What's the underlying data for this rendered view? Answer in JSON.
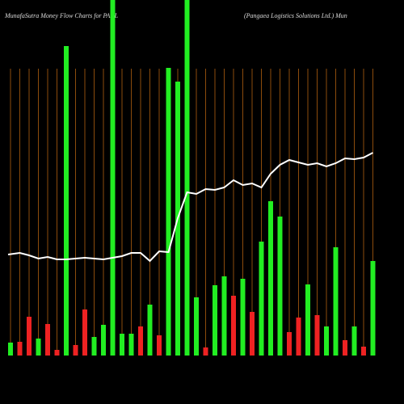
{
  "chart_data": {
    "type": "bar",
    "title": "MunafaSutra  Money Flow  Charts for PANL",
    "subtitle": "(Pangaea  Logistics Solutions Ltd.) Mun",
    "categories": [
      null,
      null,
      null,
      null,
      null,
      null,
      null,
      null,
      null,
      null,
      null,
      null,
      null,
      null,
      null,
      null,
      null,
      null,
      null,
      null,
      null,
      null,
      null,
      null,
      null,
      null,
      null,
      null,
      null,
      null,
      null,
      null,
      null,
      null,
      null,
      null,
      null,
      null,
      null,
      null
    ],
    "ylim": [
      0,
      440
    ],
    "grid": true,
    "grid_color": "#b0600f",
    "background": "#000000",
    "series": [
      {
        "type": "bar",
        "colors": [
          "#22ee22",
          "#ee2222",
          "#ee2222",
          "#22ee22",
          "#ee2222",
          "#ee2222",
          "#22ee22",
          "#ee2222",
          "#ee2222",
          "#22ee22",
          "#22ee22",
          "#22ee22",
          "#22ee22",
          "#22ee22",
          "#ee2222",
          "#22ee22",
          "#ee2222",
          "#22ee22",
          "#22ee22",
          "#22ee22",
          "#22ee22",
          "#ee2222",
          "#22ee22",
          "#22ee22",
          "#ee2222",
          "#22ee22",
          "#ee2222",
          "#22ee22",
          "#22ee22",
          "#22ee22",
          "#ee2222",
          "#ee2222",
          "#22ee22",
          "#ee2222",
          "#22ee22",
          "#22ee22",
          "#ee2222",
          "#22ee22",
          "#ee2222",
          "#22ee22"
        ],
        "values": [
          16,
          17,
          48,
          21,
          39,
          7,
          383,
          13,
          57,
          23,
          38,
          450,
          27,
          27,
          36,
          63,
          25,
          356,
          339,
          450,
          72,
          10,
          87,
          98,
          74,
          95,
          54,
          141,
          191,
          172,
          29,
          47,
          88,
          50,
          36,
          134,
          19,
          36,
          11,
          117
        ]
      },
      {
        "type": "line",
        "color": "#ffffff",
        "values": [
          125,
          127,
          124,
          120,
          122,
          119,
          119,
          120,
          121,
          120,
          119,
          121,
          123,
          127,
          127,
          117,
          129,
          128,
          170,
          202,
          200,
          206,
          205,
          208,
          217,
          211,
          213,
          208,
          225,
          236,
          242,
          239,
          236,
          238,
          234,
          238,
          244,
          243,
          245,
          251
        ]
      }
    ]
  }
}
